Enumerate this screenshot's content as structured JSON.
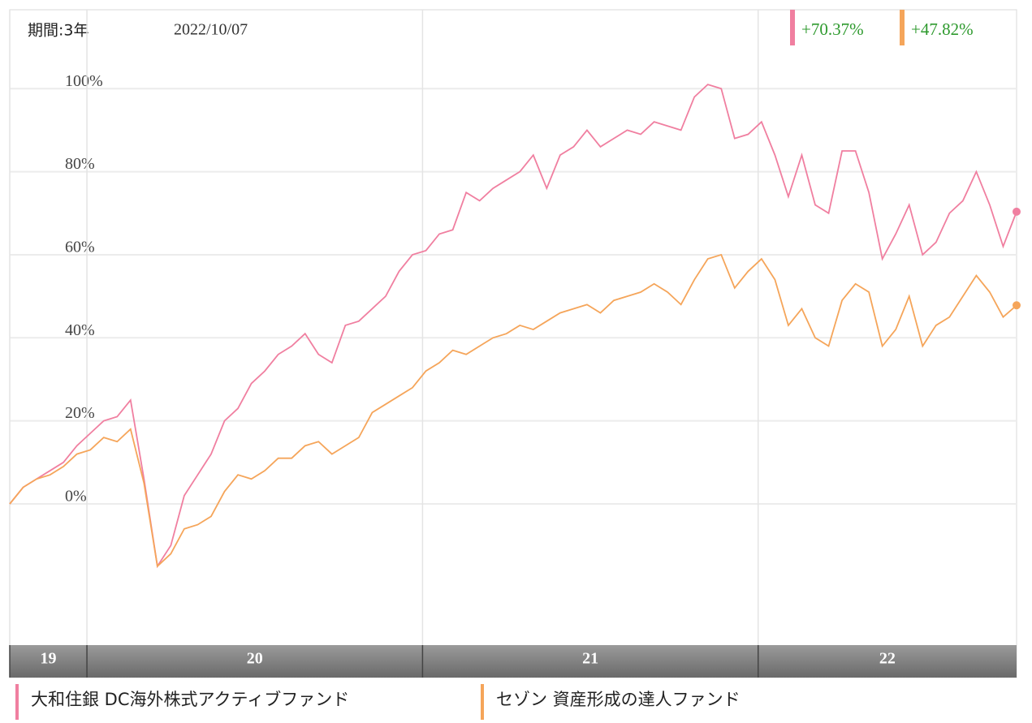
{
  "chart_data": {
    "type": "line",
    "period_label": "期間:3年",
    "date_label": "2022/10/07",
    "xlim": [
      2019.77,
      2022.77
    ],
    "xticks": [
      {
        "value": 2019.77,
        "label": "19"
      },
      {
        "value": 2020,
        "label": "20"
      },
      {
        "value": 2021,
        "label": "21"
      },
      {
        "value": 2022,
        "label": "22"
      }
    ],
    "ylim": [
      -34,
      119
    ],
    "yticks": [
      {
        "value": 0,
        "label": "0%"
      },
      {
        "value": 20,
        "label": "20%"
      },
      {
        "value": 40,
        "label": "40%"
      },
      {
        "value": 60,
        "label": "60%"
      },
      {
        "value": 80,
        "label": "80%"
      },
      {
        "value": 100,
        "label": "100%"
      }
    ],
    "grid": true,
    "x": [
      2019.77,
      2019.81,
      2019.85,
      2019.89,
      2019.93,
      2019.97,
      2020.01,
      2020.05,
      2020.09,
      2020.13,
      2020.17,
      2020.21,
      2020.25,
      2020.29,
      2020.33,
      2020.37,
      2020.41,
      2020.45,
      2020.49,
      2020.53,
      2020.57,
      2020.61,
      2020.65,
      2020.69,
      2020.73,
      2020.77,
      2020.81,
      2020.85,
      2020.89,
      2020.93,
      2020.97,
      2021.01,
      2021.05,
      2021.09,
      2021.13,
      2021.17,
      2021.21,
      2021.25,
      2021.29,
      2021.33,
      2021.37,
      2021.41,
      2021.45,
      2021.49,
      2021.53,
      2021.57,
      2021.61,
      2021.65,
      2021.69,
      2021.73,
      2021.77,
      2021.81,
      2021.85,
      2021.89,
      2021.93,
      2021.97,
      2022.01,
      2022.05,
      2022.09,
      2022.13,
      2022.17,
      2022.21,
      2022.25,
      2022.29,
      2022.33,
      2022.37,
      2022.41,
      2022.45,
      2022.49,
      2022.53,
      2022.57,
      2022.61,
      2022.65,
      2022.69,
      2022.73,
      2022.77
    ],
    "series": [
      {
        "name": "大和住銀 DC海外株式アクティブファンド",
        "color": "#f07fa0",
        "values": [
          0,
          4,
          6,
          8,
          10,
          14,
          17,
          20,
          21,
          25,
          6,
          -15,
          -10,
          2,
          7,
          12,
          20,
          23,
          29,
          32,
          36,
          38,
          41,
          36,
          34,
          43,
          44,
          47,
          50,
          56,
          60,
          61,
          65,
          66,
          75,
          73,
          76,
          78,
          80,
          84,
          76,
          84,
          86,
          90,
          86,
          88,
          90,
          89,
          92,
          91,
          90,
          98,
          101,
          100,
          88,
          89,
          92,
          84,
          74,
          84,
          72,
          70,
          85,
          85,
          75,
          59,
          65,
          72,
          60,
          63,
          70,
          73,
          80,
          72,
          62,
          70.37
        ],
        "value_labels": [
          null,
          null,
          null,
          null,
          null,
          null,
          null,
          null,
          null,
          null,
          null,
          null,
          null,
          null,
          null,
          null,
          null,
          null,
          null,
          null,
          null,
          null,
          null,
          null,
          null,
          null,
          null,
          null,
          null,
          null,
          null,
          null,
          null,
          null,
          null,
          null,
          null,
          null,
          null,
          null,
          null,
          null,
          null,
          null,
          null,
          null,
          null,
          null,
          null,
          null,
          null,
          null,
          null,
          null,
          null,
          null,
          null,
          null,
          null,
          null,
          null,
          null,
          null,
          null,
          null,
          null,
          null,
          null,
          null,
          null,
          null,
          null,
          null,
          null,
          null,
          "+70.37%"
        ]
      },
      {
        "name": "セゾン 資産形成の達人ファンド",
        "color": "#f5a55a",
        "values": [
          0,
          4,
          6,
          7,
          9,
          12,
          13,
          16,
          15,
          18,
          5,
          -15,
          -12,
          -6,
          -5,
          -3,
          3,
          7,
          6,
          8,
          11,
          11,
          14,
          15,
          12,
          14,
          16,
          22,
          24,
          26,
          28,
          32,
          34,
          37,
          36,
          38,
          40,
          41,
          43,
          42,
          44,
          46,
          47,
          48,
          46,
          49,
          50,
          51,
          53,
          51,
          48,
          54,
          59,
          60,
          52,
          56,
          59,
          54,
          43,
          47,
          40,
          38,
          49,
          53,
          51,
          38,
          42,
          50,
          38,
          43,
          45,
          50,
          55,
          51,
          45,
          47.82
        ],
        "value_labels": [
          null,
          null,
          null,
          null,
          null,
          null,
          null,
          null,
          null,
          null,
          null,
          null,
          null,
          null,
          null,
          null,
          null,
          null,
          null,
          null,
          null,
          null,
          null,
          null,
          null,
          null,
          null,
          null,
          null,
          null,
          null,
          null,
          null,
          null,
          null,
          null,
          null,
          null,
          null,
          null,
          null,
          null,
          null,
          null,
          null,
          null,
          null,
          null,
          null,
          null,
          null,
          null,
          null,
          null,
          null,
          null,
          null,
          null,
          null,
          null,
          null,
          null,
          null,
          null,
          null,
          null,
          null,
          null,
          null,
          null,
          null,
          null,
          null,
          null,
          null,
          "+47.82%"
        ]
      }
    ]
  }
}
